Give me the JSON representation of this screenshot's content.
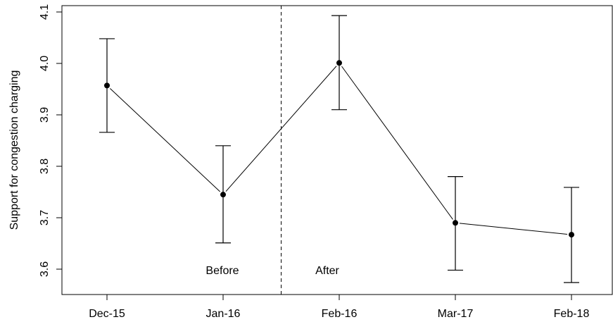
{
  "chart_data": {
    "type": "line",
    "title": "",
    "xlabel": "",
    "ylabel": "Support for congestion charging",
    "categories": [
      "Dec-15",
      "Jan-16",
      "Feb-16",
      "Mar-17",
      "Feb-18"
    ],
    "series": [
      {
        "values": [
          3.957,
          3.745,
          4.001,
          3.69,
          3.667
        ],
        "error_low": [
          3.866,
          3.651,
          3.91,
          3.598,
          3.574
        ],
        "error_high": [
          4.048,
          3.84,
          4.093,
          3.78,
          3.759
        ]
      }
    ],
    "ylim": [
      3.55,
      4.105
    ],
    "yticks": [
      "3.6",
      "3.7",
      "3.8",
      "3.9",
      "4.0",
      "4.1"
    ],
    "divider_between": [
      "Jan-16",
      "Feb-16"
    ],
    "annotations": {
      "before": "Before",
      "after": "After"
    },
    "grid": false,
    "legend": "none",
    "colors": {
      "line": "#000000",
      "marker": "#000000",
      "axis": "#000000"
    }
  }
}
